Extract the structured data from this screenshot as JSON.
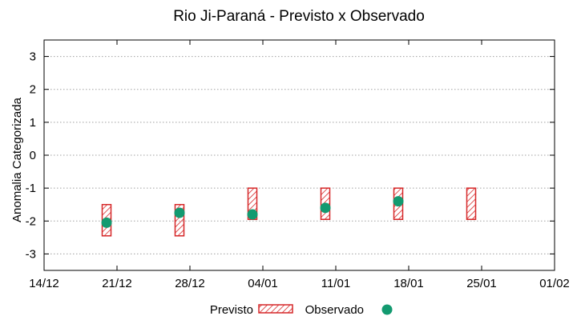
{
  "chart_data": {
    "type": "range",
    "title": "Rio Ji-Paraná - Previsto x Observado",
    "xlabel": "",
    "ylabel": "Anomalia Categorizada",
    "ylim": [
      -3.5,
      3.5
    ],
    "yticks": [
      3,
      2,
      1,
      0,
      -1,
      -2,
      -3
    ],
    "xlim": [
      "14/12",
      "01/02"
    ],
    "xticks": [
      "14/12",
      "21/12",
      "28/12",
      "04/01",
      "11/01",
      "18/01",
      "25/01",
      "01/02"
    ],
    "grid": "horizontal dotted",
    "legend": "bottom",
    "colors": {
      "previsto": "#d62728",
      "observado": "#139a70",
      "grid": "#a0a0a0"
    },
    "series": [
      {
        "name": "Previsto",
        "kind": "interval",
        "points": [
          {
            "x": "20/12",
            "low": -2.45,
            "high": -1.5
          },
          {
            "x": "27/12",
            "low": -2.45,
            "high": -1.5
          },
          {
            "x": "03/01",
            "low": -1.95,
            "high": -1.0
          },
          {
            "x": "10/01",
            "low": -1.95,
            "high": -1.0
          },
          {
            "x": "17/01",
            "low": -1.95,
            "high": -1.0
          },
          {
            "x": "24/01",
            "low": -1.95,
            "high": -1.0
          }
        ]
      },
      {
        "name": "Observado",
        "kind": "point",
        "points": [
          {
            "x": "20/12",
            "y": -2.05
          },
          {
            "x": "27/12",
            "y": -1.75
          },
          {
            "x": "03/01",
            "y": -1.8
          },
          {
            "x": "10/01",
            "y": -1.6
          },
          {
            "x": "17/01",
            "y": -1.4
          }
        ]
      }
    ]
  }
}
